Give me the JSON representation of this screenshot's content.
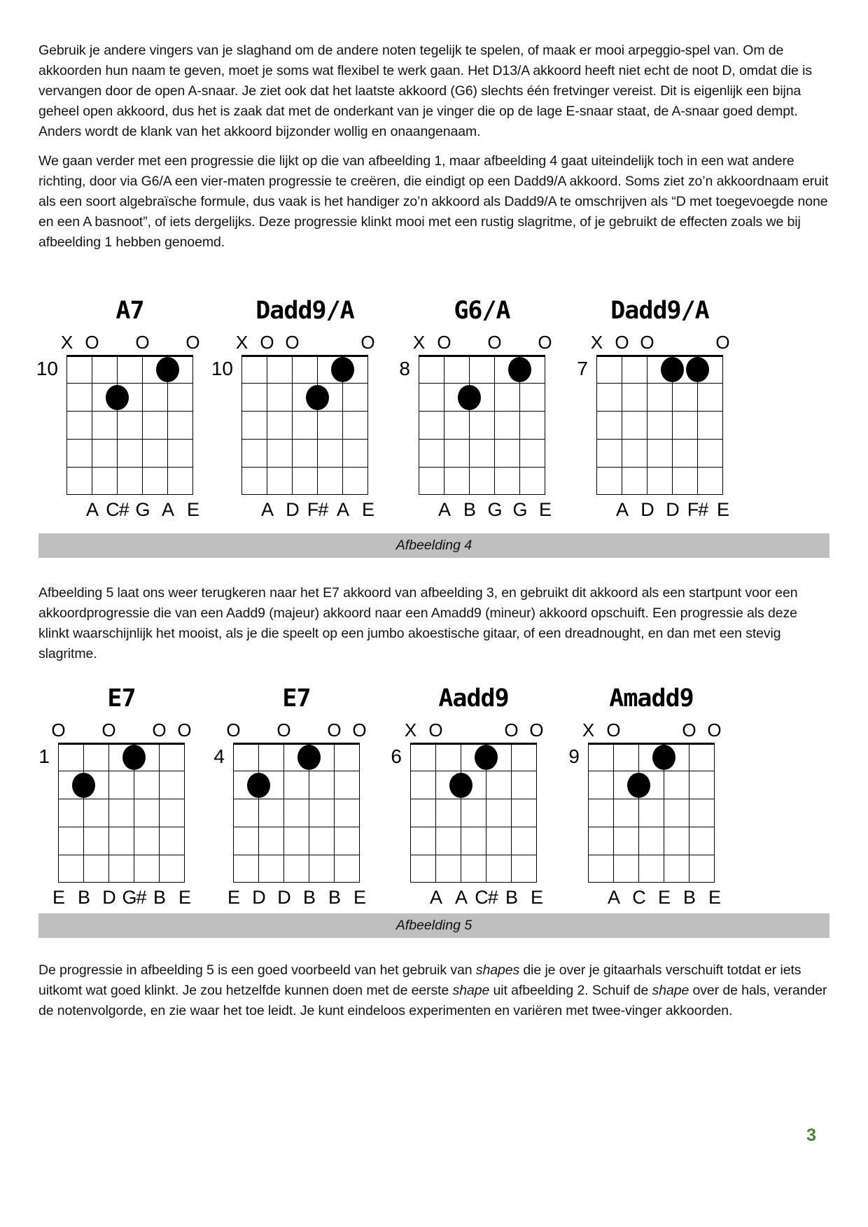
{
  "page": {
    "number": "3",
    "page_number_color": "#4f8033",
    "caption_bar_color": "#bfbfbf"
  },
  "paragraphs": [
    {
      "runs": [
        {
          "t": "Gebruik je andere vingers van je slaghand om de andere noten tegelijk te spelen, of maak er mooi arpeggio-spel van. Om de akkoorden hun naam te geven, moet je soms wat flexibel te werk gaan. Het D13/A akkoord heeft niet echt de noot D, omdat die is vervangen door de open A-snaar. Je ziet ook dat het laatste akkoord (G6) slechts één fretvinger vereist. Dit is eigenlijk een bijna geheel open akkoord, dus het is zaak dat met de onderkant van je vinger die op de lage E-snaar staat, de A-snaar goed dempt. Anders wordt de klank van het akkoord bijzonder wollig en onaangenaam."
        }
      ]
    },
    {
      "runs": [
        {
          "t": "We gaan verder met een progressie die lijkt op die van afbeelding 1, maar afbeelding 4 gaat uiteindelijk toch in een wat andere richting, door via G6/A een vier-maten progressie te creëren, die eindigt op een Dadd9/A akkoord. Soms ziet zo’n akkoordnaam eruit als een soort algebraïsche formule, dus vaak is het handiger zo’n akkoord als Dadd9/A te omschrijven als “D met toegevoegde none en een A basnoot”, of iets dergelijks. Deze progressie klinkt mooi met een rustig slagritme, of je gebruikt de effecten zoals we bij afbeelding 1 hebben genoemd."
        }
      ]
    },
    {
      "runs": [
        {
          "t": "Afbeelding 5 laat ons weer terugkeren naar het E7 akkoord van afbeelding 3, en gebruikt dit akkoord als een startpunt voor een akkoordprogressie die van een Aadd9 (majeur) akkoord naar een Amadd9 (mineur) akkoord opschuift. Een progressie als deze klinkt waarschijnlijk het mooist, als je die speelt op een jumbo akoestische gitaar, of een dreadnought, en dan met een stevig slagritme."
        }
      ]
    },
    {
      "runs": [
        {
          "t": "De progressie in afbeelding 5 is een goed voorbeeld van het gebruik van "
        },
        {
          "t": "shapes",
          "i": true
        },
        {
          "t": " die je over je gitaarhals verschuift totdat er iets uitkomt wat goed klinkt. Je zou hetzelfde kunnen doen met de eerste "
        },
        {
          "t": "shape",
          "i": true
        },
        {
          "t": " uit afbeelding 2. Schuif de "
        },
        {
          "t": "shape",
          "i": true
        },
        {
          "t": " over de hals, verander de notenvolgorde, en zie waar het toe leidt. Je kunt eindeloos experimenten en variëren met twee-vinger akkoorden."
        }
      ]
    }
  ],
  "figures": [
    {
      "caption": "Afbeelding 4",
      "diagrams": [
        {
          "title": "A7",
          "fret": "10",
          "markers": [
            "X",
            "O",
            "",
            "O",
            "",
            "O"
          ],
          "dots": [
            {
              "string": 2,
              "fret_row": 1
            },
            {
              "string": 4,
              "fret_row": 2
            }
          ],
          "notes": [
            "",
            "A",
            "C#",
            "G",
            "A",
            "E"
          ]
        },
        {
          "title": "Dadd9/A",
          "fret": "10",
          "markers": [
            "X",
            "O",
            "O",
            "",
            "",
            "O"
          ],
          "dots": [
            {
              "string": 2,
              "fret_row": 1
            },
            {
              "string": 3,
              "fret_row": 2
            }
          ],
          "notes": [
            "",
            "A",
            "D",
            "F#",
            "A",
            "E"
          ]
        },
        {
          "title": "G6/A",
          "fret": "8",
          "markers": [
            "X",
            "O",
            "",
            "O",
            "",
            "O"
          ],
          "dots": [
            {
              "string": 2,
              "fret_row": 1
            },
            {
              "string": 4,
              "fret_row": 2
            }
          ],
          "notes": [
            "",
            "A",
            "B",
            "G",
            "G",
            "E"
          ]
        },
        {
          "title": "Dadd9/A",
          "fret": "7",
          "markers": [
            "X",
            "O",
            "O",
            "",
            "",
            "O"
          ],
          "dots": [
            {
              "string": 3,
              "fret_row": 1
            },
            {
              "string": 2,
              "fret_row": 1
            }
          ],
          "notes": [
            "",
            "A",
            "D",
            "D",
            "F#",
            "E"
          ]
        }
      ]
    },
    {
      "caption": "Afbeelding 5",
      "diagrams": [
        {
          "title": "E7",
          "fret": "1",
          "markers": [
            "O",
            "",
            "O",
            "",
            "O",
            "O"
          ],
          "dots": [
            {
              "string": 3,
              "fret_row": 1
            },
            {
              "string": 5,
              "fret_row": 2
            }
          ],
          "notes": [
            "E",
            "B",
            "D",
            "G#",
            "B",
            "E"
          ]
        },
        {
          "title": "E7",
          "fret": "4",
          "markers": [
            "O",
            "",
            "O",
            "",
            "O",
            "O"
          ],
          "dots": [
            {
              "string": 3,
              "fret_row": 1
            },
            {
              "string": 5,
              "fret_row": 2
            }
          ],
          "notes": [
            "E",
            "D",
            "D",
            "B",
            "B",
            "E"
          ]
        },
        {
          "title": "Aadd9",
          "fret": "6",
          "markers": [
            "X",
            "O",
            "",
            "",
            "O",
            "O"
          ],
          "dots": [
            {
              "string": 3,
              "fret_row": 1
            },
            {
              "string": 4,
              "fret_row": 2
            }
          ],
          "notes": [
            "",
            "A",
            "A",
            "C#",
            "B",
            "E"
          ]
        },
        {
          "title": "Amadd9",
          "fret": "9",
          "markers": [
            "X",
            "O",
            "",
            "",
            "O",
            "O"
          ],
          "dots": [
            {
              "string": 3,
              "fret_row": 1
            },
            {
              "string": 4,
              "fret_row": 2
            }
          ],
          "notes": [
            "",
            "A",
            "C",
            "E",
            "B",
            "E"
          ]
        }
      ]
    }
  ]
}
